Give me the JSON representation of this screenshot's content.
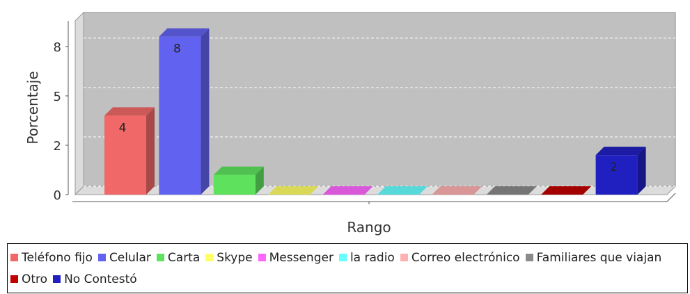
{
  "chart_data": {
    "type": "bar3d",
    "xlabel": "Rango",
    "ylabel": "Porcentaje",
    "categories": [
      "Teléfono fijo",
      "Celular",
      "Carta",
      "Skype",
      "Messenger",
      "la radio",
      "Correo electrónico",
      "Familiares que viajan",
      "Otro",
      "No Contestó"
    ],
    "values": [
      4,
      8,
      1,
      0,
      0,
      0,
      0,
      0,
      0,
      2
    ],
    "value_labels": [
      "4",
      "8",
      null,
      null,
      null,
      null,
      null,
      null,
      null,
      "2"
    ],
    "colors": [
      "#f06868",
      "#6262f0",
      "#5ee25e",
      "#ffff66",
      "#ff66ff",
      "#66ffff",
      "#ffb0b0",
      "#8a8a8a",
      "#c00000",
      "#2020c0"
    ],
    "ylim": [
      0,
      8.8
    ],
    "yticks": [
      0,
      {
        "value": 2.5,
        "label": "2"
      },
      5,
      {
        "value": 7.5,
        "label": "8"
      }
    ],
    "grid": true
  }
}
